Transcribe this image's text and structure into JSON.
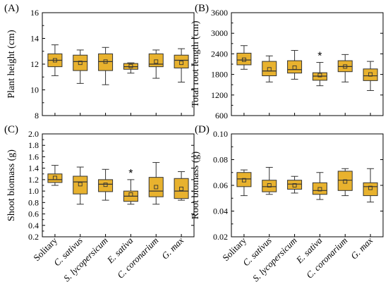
{
  "style": {
    "box_fill": "#E8B22E",
    "stroke": "#333333"
  },
  "chart_data": [
    {
      "type": "box",
      "panel": "(A)",
      "ylabel": "Plant height (cm)",
      "ylim": [
        8,
        16
      ],
      "yticks": [
        8,
        10,
        12,
        14,
        16
      ],
      "categories": [
        "Solitary",
        "C. sativus",
        "S. lycopersicum",
        "E. sativa",
        "C. coronarium",
        "G. max"
      ],
      "boxes": [
        {
          "min": 11.1,
          "q1": 11.8,
          "median": 12.3,
          "q3": 12.8,
          "max": 13.5,
          "mean": 12.3,
          "sig": ""
        },
        {
          "min": 10.5,
          "q1": 11.5,
          "median": 12.2,
          "q3": 12.7,
          "max": 13.1,
          "mean": 12.1,
          "sig": ""
        },
        {
          "min": 10.4,
          "q1": 11.5,
          "median": 12.2,
          "q3": 12.8,
          "max": 13.3,
          "mean": 12.2,
          "sig": ""
        },
        {
          "min": 11.3,
          "q1": 11.6,
          "median": 11.8,
          "q3": 12.05,
          "max": 12.1,
          "mean": 11.85,
          "sig": ""
        },
        {
          "min": 10.9,
          "q1": 11.8,
          "median": 12.0,
          "q3": 12.8,
          "max": 13.1,
          "mean": 12.2,
          "sig": ""
        },
        {
          "min": 10.6,
          "q1": 11.7,
          "median": 12.3,
          "q3": 12.7,
          "max": 13.2,
          "mean": 12.1,
          "sig": ""
        }
      ]
    },
    {
      "type": "box",
      "panel": "(B)",
      "ylabel": "Total root length (cm)",
      "ylim": [
        600,
        3600
      ],
      "yticks": [
        600,
        1200,
        1800,
        2400,
        3000,
        3600
      ],
      "categories": [
        "Solitary",
        "C. sativus",
        "S. lycopersicum",
        "E. sativa",
        "C. coronarium",
        "G. max"
      ],
      "boxes": [
        {
          "min": 1950,
          "q1": 2080,
          "median": 2220,
          "q3": 2420,
          "max": 2640,
          "mean": 2230,
          "sig": ""
        },
        {
          "min": 1580,
          "q1": 1760,
          "median": 1900,
          "q3": 2180,
          "max": 2340,
          "mean": 1950,
          "sig": ""
        },
        {
          "min": 1660,
          "q1": 1840,
          "median": 1940,
          "q3": 2200,
          "max": 2500,
          "mean": 2000,
          "sig": ""
        },
        {
          "min": 1470,
          "q1": 1630,
          "median": 1750,
          "q3": 1850,
          "max": 2150,
          "mean": 1780,
          "sig": "*"
        },
        {
          "min": 1580,
          "q1": 1880,
          "median": 2030,
          "q3": 2200,
          "max": 2380,
          "mean": 2030,
          "sig": ""
        },
        {
          "min": 1330,
          "q1": 1620,
          "median": 1760,
          "q3": 1960,
          "max": 2180,
          "mean": 1800,
          "sig": ""
        }
      ]
    },
    {
      "type": "box",
      "panel": "(C)",
      "ylabel": "Shoot biomass (g)",
      "ylim": [
        0.2,
        2.0
      ],
      "yticks": [
        0.2,
        0.4,
        0.6,
        0.8,
        1.0,
        1.2,
        1.4,
        1.6,
        1.8,
        2.0
      ],
      "categories": [
        "Solitary",
        "C. sativus",
        "S. lycopersicum",
        "E. sativa",
        "C. coronarium",
        "G. max"
      ],
      "boxes": [
        {
          "min": 1.1,
          "q1": 1.15,
          "median": 1.2,
          "q3": 1.3,
          "max": 1.45,
          "mean": 1.23,
          "sig": ""
        },
        {
          "min": 0.77,
          "q1": 0.95,
          "median": 1.16,
          "q3": 1.26,
          "max": 1.42,
          "mean": 1.12,
          "sig": ""
        },
        {
          "min": 0.84,
          "q1": 0.99,
          "median": 1.12,
          "q3": 1.2,
          "max": 1.38,
          "mean": 1.11,
          "sig": ""
        },
        {
          "min": 0.77,
          "q1": 0.82,
          "median": 0.91,
          "q3": 1.0,
          "max": 1.2,
          "mean": 0.94,
          "sig": "*"
        },
        {
          "min": 0.77,
          "q1": 0.9,
          "median": 1.0,
          "q3": 1.24,
          "max": 1.5,
          "mean": 1.07,
          "sig": ""
        },
        {
          "min": 0.84,
          "q1": 0.87,
          "median": 1.0,
          "q3": 1.22,
          "max": 1.34,
          "mean": 1.04,
          "sig": ""
        }
      ]
    },
    {
      "type": "box",
      "panel": "(D)",
      "ylabel": "Root biomass (g)",
      "ylim": [
        0.02,
        0.1
      ],
      "yticks": [
        0.02,
        0.04,
        0.06,
        0.08,
        0.1
      ],
      "categories": [
        "Solitary",
        "C. sativus",
        "S. lycopersicum",
        "E. sativa",
        "C. coronarium",
        "G. max"
      ],
      "boxes": [
        {
          "min": 0.052,
          "q1": 0.059,
          "median": 0.065,
          "q3": 0.07,
          "max": 0.072,
          "mean": 0.064,
          "sig": ""
        },
        {
          "min": 0.053,
          "q1": 0.055,
          "median": 0.059,
          "q3": 0.064,
          "max": 0.074,
          "mean": 0.06,
          "sig": ""
        },
        {
          "min": 0.054,
          "q1": 0.057,
          "median": 0.061,
          "q3": 0.064,
          "max": 0.067,
          "mean": 0.06,
          "sig": ""
        },
        {
          "min": 0.049,
          "q1": 0.053,
          "median": 0.056,
          "q3": 0.062,
          "max": 0.07,
          "mean": 0.057,
          "sig": ""
        },
        {
          "min": 0.052,
          "q1": 0.056,
          "median": 0.064,
          "q3": 0.071,
          "max": 0.073,
          "mean": 0.063,
          "sig": ""
        },
        {
          "min": 0.047,
          "q1": 0.052,
          "median": 0.059,
          "q3": 0.062,
          "max": 0.073,
          "mean": 0.058,
          "sig": ""
        }
      ]
    }
  ]
}
